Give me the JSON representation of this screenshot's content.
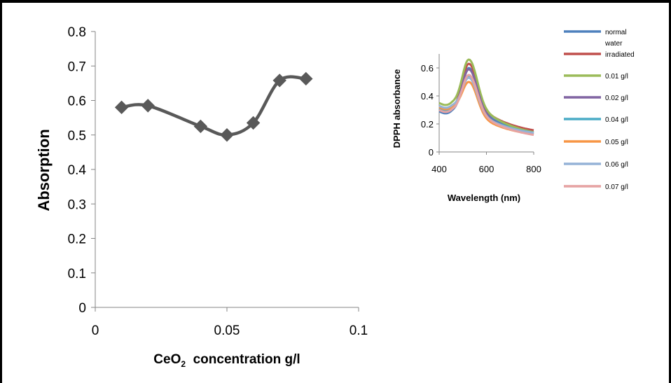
{
  "chart_data": [
    {
      "type": "line",
      "title": "",
      "xlabel_main": "CeO",
      "xlabel_sub": "2",
      "xlabel_rest": "  concentration g/l",
      "ylabel": "Absorption",
      "xlim": [
        0,
        0.1
      ],
      "ylim": [
        0,
        0.8
      ],
      "xticks": [
        "0",
        "0.05",
        "0.1"
      ],
      "xtick_values": [
        0,
        0.05,
        0.1
      ],
      "yticks": [
        "0",
        "0.1",
        "0.2",
        "0.3",
        "0.4",
        "0.5",
        "0.6",
        "0.7",
        "0.8"
      ],
      "ytick_values": [
        0,
        0.1,
        0.2,
        0.3,
        0.4,
        0.5,
        0.6,
        0.7,
        0.8
      ],
      "grid": false,
      "line_color": "#595959",
      "marker": "diamond",
      "smooth": true,
      "x": [
        0.01,
        0.02,
        0.04,
        0.05,
        0.06,
        0.07,
        0.08
      ],
      "y": [
        0.58,
        0.585,
        0.525,
        0.5,
        0.535,
        0.658,
        0.663
      ]
    },
    {
      "type": "line",
      "title": "",
      "xlabel": "Wavelength (nm)",
      "ylabel": "DPPH absorbance",
      "xlim": [
        400,
        800
      ],
      "ylim": [
        0,
        0.7
      ],
      "xticks": [
        "400",
        "600",
        "800"
      ],
      "xtick_values": [
        400,
        600,
        800
      ],
      "yticks": [
        "0",
        "0.2",
        "0.4",
        "0.6"
      ],
      "ytick_values": [
        0,
        0.2,
        0.4,
        0.6
      ],
      "grid": false,
      "legend_position": "right",
      "series": [
        {
          "name": "normal water",
          "color": "#4f81bd",
          "base": 0.29,
          "peak": 0.6,
          "end": 0.09
        },
        {
          "name": "irradiated",
          "color": "#c0504d",
          "base": 0.31,
          "peak": 0.63,
          "end": 0.11
        },
        {
          "name": "0.01 g/l",
          "color": "#9bbb59",
          "base": 0.35,
          "peak": 0.66,
          "end": 0.09
        },
        {
          "name": "0.02 g/l",
          "color": "#8064a2",
          "base": 0.3,
          "peak": 0.59,
          "end": 0.08
        },
        {
          "name": "0.04 g/l",
          "color": "#4bacc6",
          "base": 0.31,
          "peak": 0.54,
          "end": 0.1
        },
        {
          "name": "0.05 g/l",
          "color": "#f79646",
          "base": 0.32,
          "peak": 0.5,
          "end": 0.09
        },
        {
          "name": "0.06 g/l",
          "color": "#95b3d7",
          "base": 0.33,
          "peak": 0.53,
          "end": 0.1
        },
        {
          "name": "0.07 g/l",
          "color": "#e6a3a3",
          "base": 0.3,
          "peak": 0.55,
          "end": 0.08
        }
      ]
    }
  ]
}
